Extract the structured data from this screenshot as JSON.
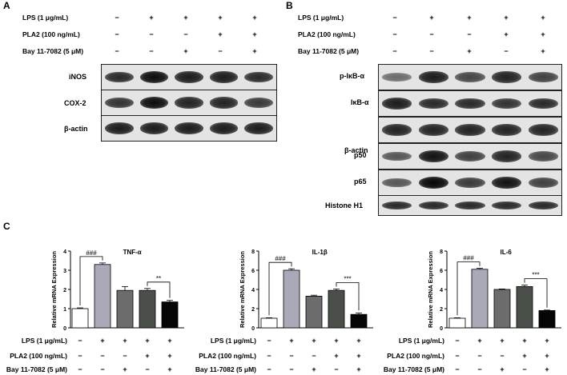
{
  "panels": {
    "a": {
      "letter": "A",
      "conditions": [
        {
          "label": "LPS (1 μg/mL)",
          "signs": [
            "−",
            "+",
            "+",
            "+",
            "+"
          ]
        },
        {
          "label": "PLA2 (100 ng/mL)",
          "signs": [
            "−",
            "−",
            "−",
            "+",
            "+"
          ]
        },
        {
          "label": "Bay 11-7082 (5 μM)",
          "signs": [
            "−",
            "−",
            "+",
            "−",
            "+"
          ]
        }
      ],
      "blots": [
        {
          "label": "iNOS",
          "intensity": [
            0.75,
            0.95,
            0.85,
            0.85,
            0.75
          ]
        },
        {
          "label": "COX-2",
          "intensity": [
            0.7,
            0.95,
            0.8,
            0.8,
            0.65
          ]
        },
        {
          "label": "β-actin",
          "intensity": [
            0.85,
            0.85,
            0.85,
            0.85,
            0.85
          ]
        }
      ]
    },
    "b": {
      "letter": "B",
      "conditions": [
        {
          "label": "LPS (1 μg/mL)",
          "signs": [
            "−",
            "+",
            "+",
            "+",
            "+"
          ]
        },
        {
          "label": "PLA2 (100 ng/mL)",
          "signs": [
            "−",
            "−",
            "−",
            "+",
            "+"
          ]
        },
        {
          "label": "Bay 11-7082 (5 μM)",
          "signs": [
            "−",
            "−",
            "+",
            "−",
            "+"
          ]
        }
      ],
      "blots": [
        {
          "label": "p-IκB-α",
          "intensity": [
            0.3,
            0.85,
            0.55,
            0.8,
            0.6
          ]
        },
        {
          "label": "IκB-α",
          "intensity": [
            0.85,
            0.75,
            0.75,
            0.7,
            0.75
          ]
        },
        {
          "label": "β-actin",
          "intensity": [
            0.8,
            0.8,
            0.8,
            0.8,
            0.8
          ]
        },
        {
          "label": "p50",
          "intensity": [
            0.45,
            0.9,
            0.6,
            0.8,
            0.55
          ]
        },
        {
          "label": "p65",
          "intensity": [
            0.45,
            1.0,
            0.65,
            0.9,
            0.6
          ]
        },
        {
          "label": "Histone H1",
          "intensity": [
            0.75,
            0.75,
            0.75,
            0.75,
            0.75
          ]
        }
      ]
    },
    "c": {
      "letter": "C",
      "conditions": [
        {
          "label": "LPS (1 μg/mL)",
          "signs": [
            "−",
            "+",
            "+",
            "+",
            "+"
          ]
        },
        {
          "label": "PLA2 (100 ng/mL)",
          "signs": [
            "−",
            "−",
            "−",
            "+",
            "+"
          ]
        },
        {
          "label": "Bay 11-7082 (5 μM)",
          "signs": [
            "−",
            "−",
            "+",
            "−",
            "+"
          ]
        }
      ]
    }
  },
  "chart_data": [
    {
      "type": "bar",
      "title": "TNF-α",
      "ylabel": "Relative mRNA Expression",
      "ylim": [
        0,
        4
      ],
      "yticks": [
        0,
        1,
        2,
        3,
        4
      ],
      "categories": [
        "",
        "",
        "",
        "",
        ""
      ],
      "values": [
        1.0,
        3.3,
        1.95,
        1.95,
        1.35
      ],
      "errors": [
        0.04,
        0.08,
        0.2,
        0.1,
        0.08
      ],
      "bar_colors": [
        "#ffffff",
        "#a9a9b8",
        "#6c6c6c",
        "#4a4f4a",
        "#050505"
      ],
      "annotations": [
        {
          "text": "###",
          "from": 0,
          "to": 1
        },
        {
          "text": "**",
          "from": 3,
          "to": 4
        }
      ]
    },
    {
      "type": "bar",
      "title": "IL-1β",
      "ylabel": "Relative mRNA Expression",
      "ylim": [
        0,
        8
      ],
      "yticks": [
        0,
        2,
        4,
        6,
        8
      ],
      "categories": [
        "",
        "",
        "",
        "",
        ""
      ],
      "values": [
        1.0,
        6.0,
        3.3,
        3.9,
        1.4
      ],
      "errors": [
        0.05,
        0.15,
        0.1,
        0.15,
        0.15
      ],
      "bar_colors": [
        "#ffffff",
        "#a9a9b8",
        "#6c6c6c",
        "#4a4f4a",
        "#050505"
      ],
      "annotations": [
        {
          "text": "###",
          "from": 0,
          "to": 1
        },
        {
          "text": "***",
          "from": 3,
          "to": 4
        }
      ]
    },
    {
      "type": "bar",
      "title": "IL-6",
      "ylabel": "Relative mRNA Expression",
      "ylim": [
        0,
        8
      ],
      "yticks": [
        0,
        2,
        4,
        6,
        8
      ],
      "categories": [
        "",
        "",
        "",
        "",
        ""
      ],
      "values": [
        1.0,
        6.1,
        4.0,
        4.3,
        1.8
      ],
      "errors": [
        0.05,
        0.1,
        0.05,
        0.15,
        0.05
      ],
      "bar_colors": [
        "#ffffff",
        "#a9a9b8",
        "#6c6c6c",
        "#4a4f4a",
        "#050505"
      ],
      "annotations": [
        {
          "text": "###",
          "from": 0,
          "to": 1
        },
        {
          "text": "***",
          "from": 3,
          "to": 4
        }
      ]
    }
  ]
}
